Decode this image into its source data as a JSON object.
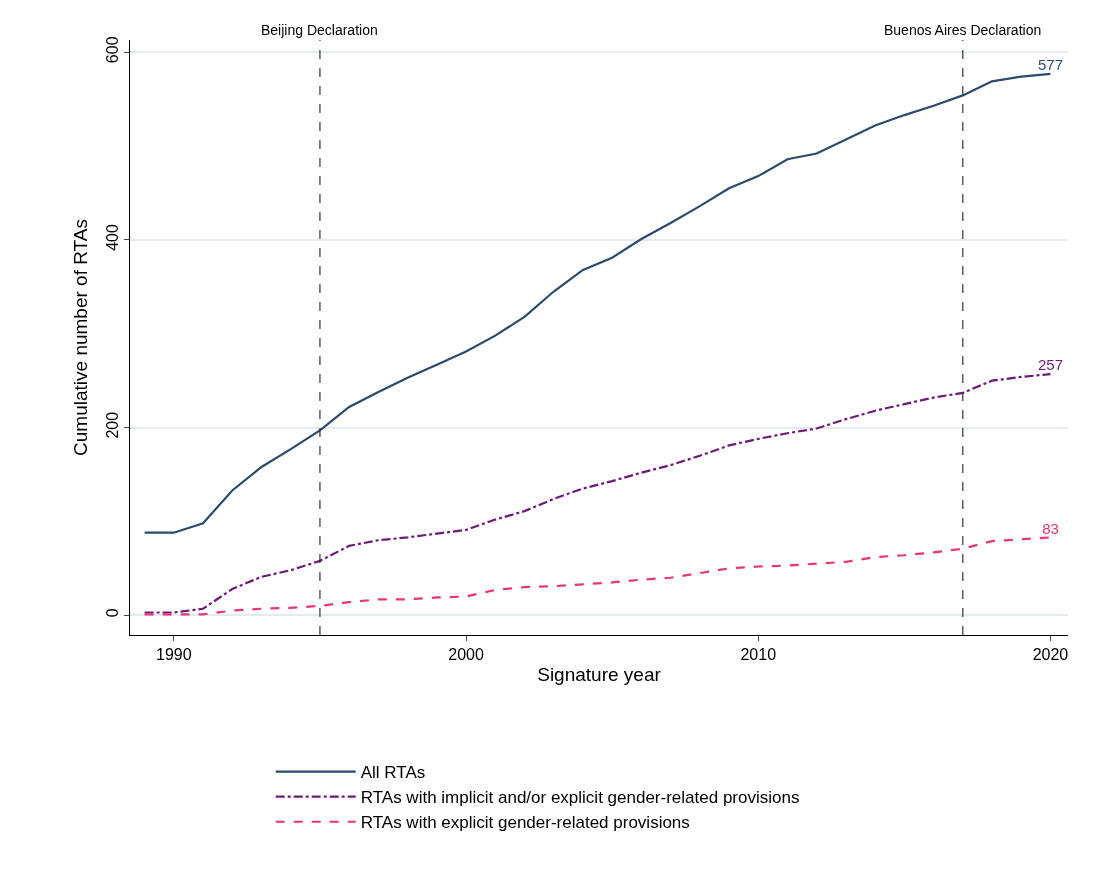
{
  "chart_data": {
    "type": "line",
    "xlabel": "Signature year",
    "ylabel": "Cumulative number of RTAs",
    "x": [
      1989,
      1990,
      1991,
      1992,
      1993,
      1994,
      1995,
      1996,
      1997,
      1998,
      1999,
      2000,
      2001,
      2002,
      2003,
      2004,
      2005,
      2006,
      2007,
      2008,
      2009,
      2010,
      2011,
      2012,
      2013,
      2014,
      2015,
      2016,
      2017,
      2018,
      2019,
      2020
    ],
    "series": [
      {
        "name": "All RTAs",
        "color": "#2b4a6e",
        "line_style": "solid",
        "values": [
          88,
          88,
          98,
          133,
          158,
          177,
          197,
          222,
          238,
          253,
          267,
          281,
          298,
          318,
          345,
          368,
          381,
          401,
          418,
          436,
          455,
          468,
          486,
          492,
          507,
          522,
          533,
          543,
          554,
          569,
          574,
          577
        ],
        "value_labels": [
          null,
          null,
          null,
          null,
          null,
          null,
          null,
          null,
          null,
          null,
          null,
          null,
          null,
          null,
          null,
          null,
          null,
          null,
          null,
          null,
          null,
          null,
          null,
          null,
          null,
          null,
          null,
          null,
          null,
          null,
          null,
          "577"
        ]
      },
      {
        "name": "RTAs with implicit and/or explicit gender-related provisions",
        "color": "#6e1a78",
        "line_style": "dashdot",
        "values": [
          3,
          3,
          7,
          28,
          41,
          48,
          58,
          74,
          80,
          83,
          87,
          91,
          102,
          111,
          124,
          135,
          143,
          152,
          160,
          170,
          181,
          188,
          194,
          199,
          209,
          218,
          225,
          232,
          237,
          250,
          254,
          257
        ],
        "value_labels": [
          null,
          null,
          null,
          null,
          null,
          null,
          null,
          null,
          null,
          null,
          null,
          null,
          null,
          null,
          null,
          null,
          null,
          null,
          null,
          null,
          null,
          null,
          null,
          null,
          null,
          null,
          null,
          null,
          null,
          null,
          null,
          "257"
        ]
      },
      {
        "name": "RTAs with explicit gender-related provisions",
        "color": "#e8357a",
        "line_style": "dashed",
        "values": [
          1,
          1,
          1,
          5,
          7,
          8,
          10,
          14,
          17,
          17,
          19,
          20,
          27,
          30,
          31,
          33,
          35,
          38,
          40,
          45,
          50,
          52,
          53,
          55,
          57,
          62,
          64,
          67,
          71,
          79,
          81,
          83
        ],
        "value_labels": [
          null,
          null,
          null,
          null,
          null,
          null,
          null,
          null,
          null,
          null,
          null,
          null,
          null,
          null,
          null,
          null,
          null,
          null,
          null,
          null,
          null,
          null,
          null,
          null,
          null,
          null,
          null,
          null,
          null,
          null,
          null,
          "83"
        ]
      }
    ],
    "xlim": [
      1988.5,
      2020.6
    ],
    "xticks": [
      1990,
      2000,
      2010,
      2020
    ],
    "ylim": [
      -21,
      613
    ],
    "yticks": [
      0,
      200,
      400,
      600
    ],
    "grid": "y",
    "legend": "bottom",
    "marker": "none",
    "ref_lines": [
      {
        "axis": "x",
        "value": 1995,
        "label": "Beijing Declaration",
        "color": "#333333",
        "line_style": "dashed"
      },
      {
        "axis": "x",
        "value": 2017,
        "label": "Buenos Aires Declaration",
        "color": "#333333",
        "line_style": "dashed"
      }
    ]
  }
}
